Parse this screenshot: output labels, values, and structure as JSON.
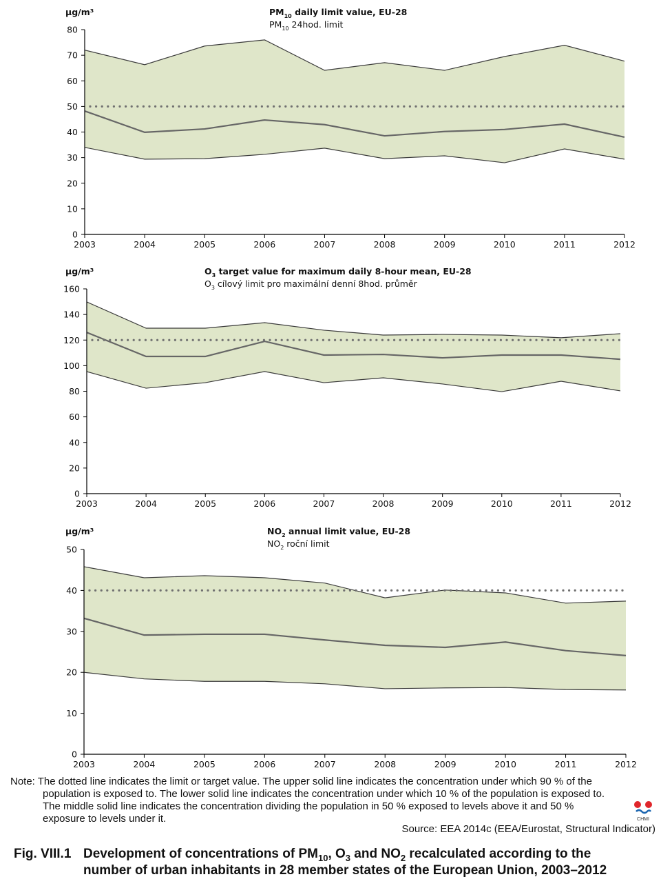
{
  "chart_data": [
    {
      "type": "band",
      "title": [
        "PM",
        "10",
        " daily limit value, EU-28"
      ],
      "subtitle": [
        "PM",
        "10",
        " 24hod. limit"
      ],
      "ylabel": "µg/m³",
      "categories": [
        "2003",
        "2004",
        "2005",
        "2006",
        "2007",
        "2008",
        "2009",
        "2010",
        "2011",
        "2012"
      ],
      "series": [
        {
          "color": "#3a3a3a",
          "values": [
            72,
            66.3,
            73.6,
            76,
            64.1,
            67.1,
            64.1,
            69.5,
            73.9,
            67.7
          ]
        },
        {
          "color": "#666666",
          "values": [
            48.2,
            39.9,
            41.2,
            44.7,
            42.9,
            38.5,
            40.2,
            41,
            43.1,
            38
          ]
        },
        {
          "color": "#3a3a3a",
          "values": [
            34,
            29.4,
            29.6,
            31.3,
            33.7,
            29.6,
            30.7,
            28,
            33.4,
            29.4
          ]
        }
      ],
      "band_color": "#dfe6c9",
      "limit": 50,
      "limit_color": "#707070",
      "ylim": [
        0,
        80
      ],
      "yticks": [
        0,
        10,
        20,
        30,
        40,
        50,
        60,
        70,
        80
      ]
    },
    {
      "type": "band",
      "title": [
        "O",
        "3",
        " target value for maximum daily 8-hour mean, EU-28"
      ],
      "subtitle": [
        "O",
        "3",
        " cílový limit pro maximální denní 8hod. průměr"
      ],
      "ylabel": "µg/m³",
      "categories": [
        "2003",
        "2004",
        "2005",
        "2006",
        "2007",
        "2008",
        "2009",
        "2010",
        "2011",
        "2012"
      ],
      "series": [
        {
          "color": "#3a3a3a",
          "values": [
            149.8,
            129.3,
            129.3,
            133.6,
            127.7,
            123.9,
            124.4,
            123.9,
            121.8,
            125
          ]
        },
        {
          "color": "#666666",
          "values": [
            126,
            107.2,
            107.2,
            119,
            108.3,
            108.8,
            106.1,
            108.3,
            108.3,
            105
          ]
        },
        {
          "color": "#3a3a3a",
          "values": [
            95.4,
            82.4,
            86.7,
            95.4,
            86.7,
            90.5,
            85.7,
            79.7,
            87.8,
            80.3
          ]
        }
      ],
      "band_color": "#dfe6c9",
      "limit": 120,
      "limit_color": "#707070",
      "ylim": [
        0,
        160
      ],
      "yticks": [
        0,
        20,
        40,
        60,
        80,
        100,
        120,
        140,
        160
      ]
    },
    {
      "type": "band",
      "title": [
        "NO",
        "2",
        " annual limit value, EU-28"
      ],
      "subtitle": [
        "NO",
        "2",
        " roční limit"
      ],
      "ylabel": "µg/m³",
      "categories": [
        "2003",
        "2004",
        "2005",
        "2006",
        "2007",
        "2008",
        "2009",
        "2010",
        "2011",
        "2012"
      ],
      "series": [
        {
          "color": "#3a3a3a",
          "values": [
            45.8,
            43.1,
            43.6,
            43.1,
            41.8,
            38.2,
            40.1,
            39.4,
            36.9,
            37.4
          ]
        },
        {
          "color": "#666666",
          "values": [
            33.2,
            29.1,
            29.3,
            29.3,
            27.9,
            26.6,
            26.1,
            27.4,
            25.3,
            24.1
          ]
        },
        {
          "color": "#3a3a3a",
          "values": [
            20,
            18.4,
            17.8,
            17.8,
            17.2,
            16,
            16.2,
            16.3,
            15.8,
            15.7
          ]
        }
      ],
      "band_color": "#dfe6c9",
      "limit": 40,
      "limit_color": "#707070",
      "ylim": [
        0,
        50
      ],
      "yticks": [
        0,
        10,
        20,
        30,
        40,
        50
      ]
    }
  ],
  "note": [
    "Note: The dotted line indicates the limit or target value. The upper solid line indicates the concentration under which 90 % of the",
    "population is exposed to. The lower solid line indicates the concentration under which 10 % of the population is exposed to.",
    "The middle solid line indicates the concentration dividing the population in 50 % exposed to levels above it and 50 %",
    "exposure to levels under it."
  ],
  "source": "Source: EEA 2014c (EEA/Eurostat, Structural Indicator)",
  "logo_text": "CHMI",
  "caption": [
    "Fig. VIII.1",
    "Development of concentrations of PM",
    "10",
    ", O",
    "3",
    " and NO",
    "2",
    " recalculated according to the",
    "number of urban inhabitants in 28 member states of the European Union, 2003–2012"
  ]
}
